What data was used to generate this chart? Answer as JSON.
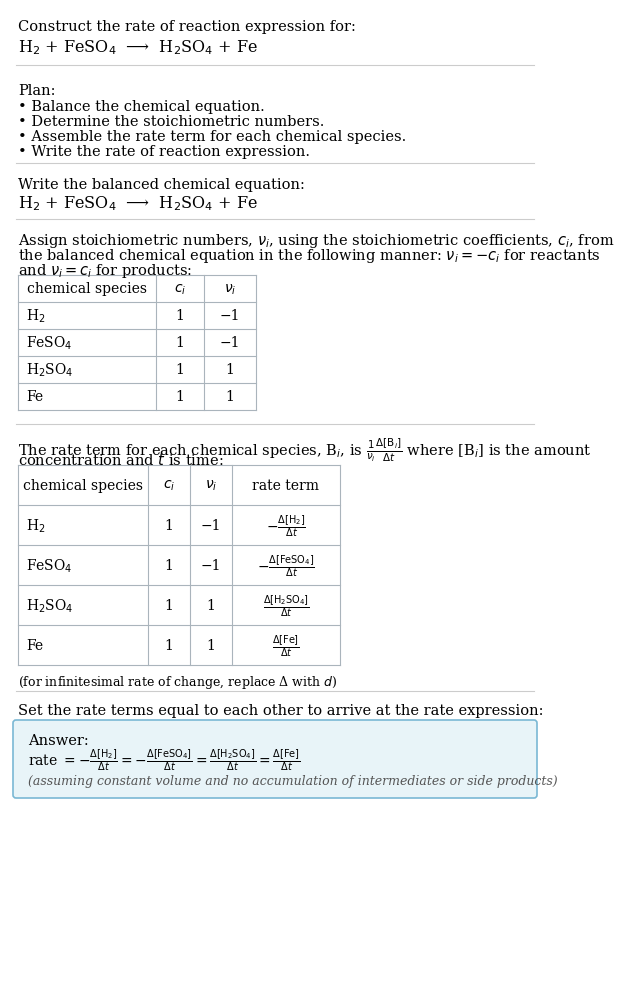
{
  "title_text": "Construct the rate of reaction expression for:",
  "reaction_eq": "H$_2$ + FeSO$_4$  ⟶  H$_2$SO$_4$ + Fe",
  "plan_header": "Plan:",
  "plan_items": [
    "• Balance the chemical equation.",
    "• Determine the stoichiometric numbers.",
    "• Assemble the rate term for each chemical species.",
    "• Write the rate of reaction expression."
  ],
  "balanced_header": "Write the balanced chemical equation:",
  "balanced_eq": "H$_2$ + FeSO$_4$  ⟶  H$_2$SO$_4$ + Fe",
  "stoich_intro1": "Assign stoichiometric numbers, $\\nu_i$, using the stoichiometric coefficients, $c_i$, from",
  "stoich_intro2": "the balanced chemical equation in the following manner: $\\nu_i = -c_i$ for reactants",
  "stoich_intro3": "and $\\nu_i = c_i$ for products:",
  "table1_headers": [
    "chemical species",
    "$c_i$",
    "$\\nu_i$"
  ],
  "table1_rows": [
    [
      "H$_2$",
      "1",
      "−1"
    ],
    [
      "FeSO$_4$",
      "1",
      "−1"
    ],
    [
      "H$_2$SO$_4$",
      "1",
      "1"
    ],
    [
      "Fe",
      "1",
      "1"
    ]
  ],
  "rate_intro1": "The rate term for each chemical species, B$_i$, is $\\frac{1}{\\nu_i}\\frac{\\Delta[\\mathrm{B}_i]}{\\Delta t}$ where [B$_i$] is the amount",
  "rate_intro2": "concentration and $t$ is time:",
  "table2_headers": [
    "chemical species",
    "$c_i$",
    "$\\nu_i$",
    "rate term"
  ],
  "table2_rows": [
    [
      "H$_2$",
      "1",
      "−1",
      "$-\\frac{\\Delta[\\mathrm{H_2}]}{\\Delta t}$"
    ],
    [
      "FeSO$_4$",
      "1",
      "−1",
      "$-\\frac{\\Delta[\\mathrm{FeSO_4}]}{\\Delta t}$"
    ],
    [
      "H$_2$SO$_4$",
      "1",
      "1",
      "$\\frac{\\Delta[\\mathrm{H_2SO_4}]}{\\Delta t}$"
    ],
    [
      "Fe",
      "1",
      "1",
      "$\\frac{\\Delta[\\mathrm{Fe}]}{\\Delta t}$"
    ]
  ],
  "infinitesimal_note": "(for infinitesimal rate of change, replace Δ with $d$)",
  "set_rate_text": "Set the rate terms equal to each other to arrive at the rate expression:",
  "answer_label": "Answer:",
  "rate_expression": "rate $= -\\frac{\\Delta[\\mathrm{H_2}]}{\\Delta t} = -\\frac{\\Delta[\\mathrm{FeSO_4}]}{\\Delta t} = \\frac{\\Delta[\\mathrm{H_2SO_4}]}{\\Delta t} = \\frac{\\Delta[\\mathrm{Fe}]}{\\Delta t}$",
  "assumption_note": "(assuming constant volume and no accumulation of intermediates or side products)",
  "bg_color": "#ffffff",
  "text_color": "#000000",
  "table_border_color": "#aab4bc",
  "answer_box_facecolor": "#e8f4f8",
  "answer_box_edgecolor": "#7ab8d4",
  "separator_color": "#cccccc",
  "font_size_main": 10.5,
  "font_size_table": 10.0,
  "font_size_small": 9.0
}
